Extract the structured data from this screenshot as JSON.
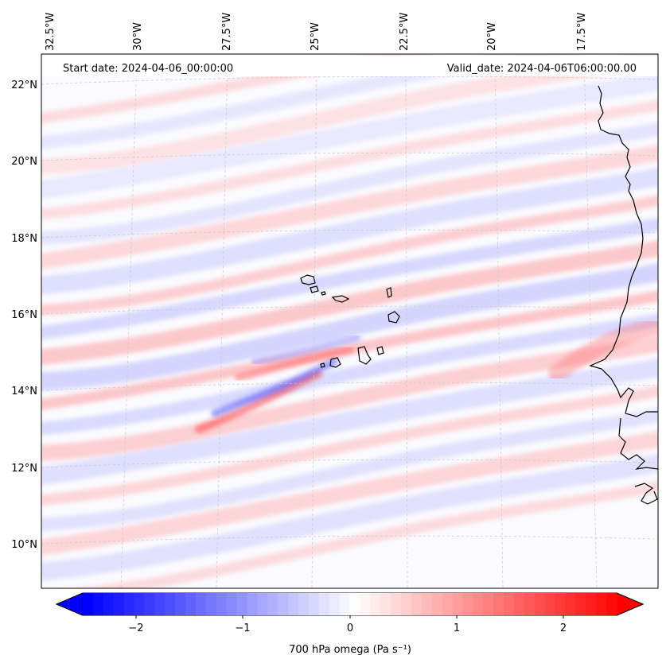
{
  "header": {
    "start_date": "Start date: 2024-04-06_00:00:00",
    "valid_date": "Valid_date: 2024-04-06T06:00:00.00"
  },
  "map": {
    "projection": "lambert-conformal",
    "lon_labels": [
      "32.5°W",
      "30°W",
      "27.5°W",
      "25°W",
      "22.5°W",
      "20°W",
      "17.5°W"
    ],
    "lat_labels": [
      "22°N",
      "20°N",
      "18°N",
      "16°N",
      "14°N",
      "12°N",
      "10°N"
    ],
    "gridlines": "dashed-grey",
    "features": [
      "coastline-africa",
      "cape-verde-islands"
    ]
  },
  "colorbar": {
    "label": "700 hPa omega (Pa s⁻¹)",
    "ticks": [
      "−2",
      "−1",
      "0",
      "1",
      "2"
    ],
    "range": [
      -2.6,
      2.6
    ],
    "colormap": "bwr",
    "extend": "both",
    "colors": {
      "negative": "#0000ff",
      "zero": "#ffffff",
      "positive": "#ff0000"
    }
  }
}
